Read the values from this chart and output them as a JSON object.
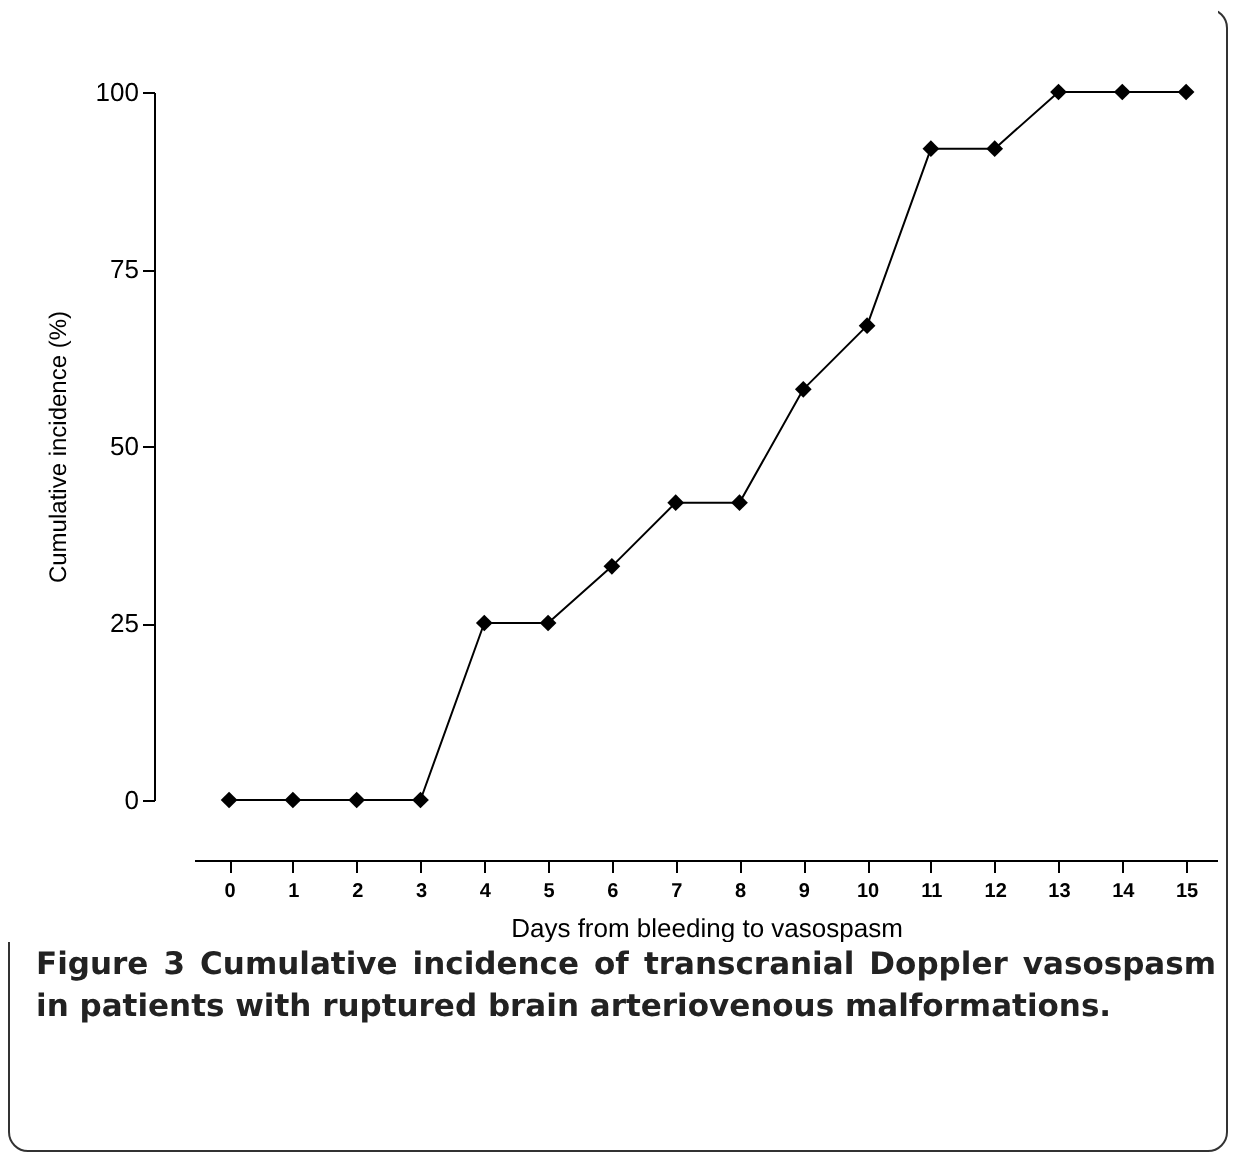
{
  "chart_data": {
    "type": "line",
    "xlabel": "Days from bleeding to vasospasm",
    "ylabel": "Cumulative incidence (%)",
    "x": [
      0,
      1,
      2,
      3,
      4,
      5,
      6,
      7,
      8,
      9,
      10,
      11,
      12,
      13,
      14,
      15
    ],
    "series": [
      {
        "color": "#000000",
        "values": [
          0,
          0,
          0,
          0,
          25,
          25,
          33,
          42,
          42,
          58,
          67,
          92,
          92,
          100,
          100,
          100
        ]
      }
    ],
    "xlim": [
      -0.55,
      15.5
    ],
    "xticks": [
      0,
      1,
      2,
      3,
      4,
      5,
      6,
      7,
      8,
      9,
      10,
      11,
      12,
      13,
      14,
      15
    ],
    "ylim": [
      0,
      100
    ],
    "yticks": [
      0,
      25,
      50,
      75,
      100
    ],
    "grid": false,
    "legend": false,
    "marker": "diamond",
    "line_style": "solid",
    "annotations": [
      "Figure 3 Cumulative incidence of transcranial Doppler vasospasm in patients with ruptured brain arteriovenous malformations."
    ]
  }
}
